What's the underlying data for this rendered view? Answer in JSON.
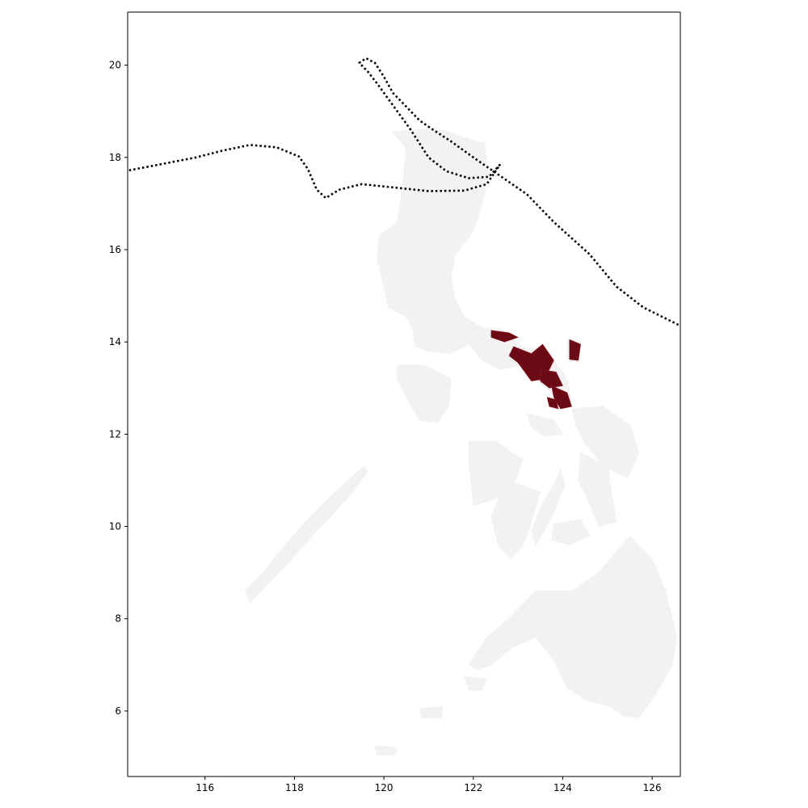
{
  "chart_data": {
    "type": "map",
    "region": "Philippines",
    "xlim": [
      114.27,
      126.63
    ],
    "ylim": [
      4.58,
      21.15
    ],
    "x_ticks": [
      116,
      118,
      120,
      122,
      124,
      126
    ],
    "y_ticks": [
      6,
      8,
      10,
      12,
      14,
      16,
      18,
      20
    ],
    "x_tick_labels": [
      "116",
      "118",
      "120",
      "122",
      "124",
      "126"
    ],
    "y_tick_labels": [
      "6",
      "8",
      "10",
      "12",
      "14",
      "16",
      "18",
      "20"
    ],
    "grid": false,
    "colors": {
      "land": "#f2f2f2",
      "highlight": "#6b0a14",
      "track": "#000000"
    },
    "track_style": "dotted",
    "storm_tracks": [
      {
        "points": [
          [
            114.3,
            17.72
          ],
          [
            115.0,
            17.85
          ],
          [
            115.8,
            18.0
          ],
          [
            116.4,
            18.15
          ],
          [
            117.0,
            18.27
          ],
          [
            117.6,
            18.22
          ],
          [
            118.1,
            18.02
          ],
          [
            118.3,
            17.75
          ],
          [
            118.5,
            17.3
          ],
          [
            118.7,
            17.12
          ],
          [
            119.0,
            17.3
          ],
          [
            119.5,
            17.42
          ],
          [
            120.2,
            17.35
          ],
          [
            121.0,
            17.27
          ],
          [
            121.8,
            17.28
          ],
          [
            122.3,
            17.42
          ],
          [
            122.6,
            17.85
          ]
        ]
      },
      {
        "points": [
          [
            122.6,
            17.85
          ],
          [
            122.35,
            17.58
          ],
          [
            121.9,
            17.55
          ],
          [
            121.4,
            17.7
          ],
          [
            121.0,
            18.0
          ],
          [
            120.6,
            18.6
          ],
          [
            120.15,
            19.2
          ],
          [
            119.85,
            19.6
          ],
          [
            119.65,
            19.85
          ],
          [
            119.45,
            20.05
          ],
          [
            119.6,
            20.15
          ],
          [
            119.8,
            20.05
          ],
          [
            120.0,
            19.75
          ],
          [
            120.2,
            19.4
          ],
          [
            120.5,
            19.1
          ],
          [
            120.8,
            18.8
          ],
          [
            121.1,
            18.6
          ],
          [
            121.5,
            18.35
          ],
          [
            122.0,
            18.0
          ],
          [
            122.6,
            17.6
          ],
          [
            123.2,
            17.2
          ],
          [
            123.8,
            16.6
          ],
          [
            124.6,
            15.9
          ],
          [
            125.2,
            15.2
          ],
          [
            125.8,
            14.75
          ],
          [
            126.63,
            14.35
          ]
        ]
      }
    ],
    "land_polygons": [
      {
        "name": "Luzon",
        "points": [
          [
            120.2,
            18.55
          ],
          [
            120.6,
            18.6
          ],
          [
            121.3,
            18.6
          ],
          [
            121.9,
            18.4
          ],
          [
            122.25,
            18.3
          ],
          [
            122.35,
            17.6
          ],
          [
            122.2,
            17.0
          ],
          [
            122.0,
            16.4
          ],
          [
            121.6,
            15.9
          ],
          [
            121.5,
            15.4
          ],
          [
            121.6,
            14.9
          ],
          [
            121.8,
            14.55
          ],
          [
            122.2,
            14.3
          ],
          [
            122.6,
            14.3
          ],
          [
            122.9,
            14.05
          ],
          [
            123.2,
            13.85
          ],
          [
            123.5,
            13.9
          ],
          [
            123.8,
            13.6
          ],
          [
            124.1,
            13.2
          ],
          [
            124.2,
            12.6
          ],
          [
            123.9,
            12.75
          ],
          [
            123.5,
            13.1
          ],
          [
            123.1,
            13.5
          ],
          [
            122.6,
            13.4
          ],
          [
            122.2,
            13.6
          ],
          [
            121.9,
            13.95
          ],
          [
            121.5,
            13.75
          ],
          [
            121.0,
            13.8
          ],
          [
            120.7,
            13.9
          ],
          [
            120.65,
            14.25
          ],
          [
            120.5,
            14.55
          ],
          [
            120.1,
            14.75
          ],
          [
            120.0,
            15.2
          ],
          [
            119.85,
            15.8
          ],
          [
            119.9,
            16.3
          ],
          [
            120.3,
            16.6
          ],
          [
            120.4,
            17.2
          ],
          [
            120.45,
            17.7
          ],
          [
            120.5,
            18.2
          ]
        ]
      },
      {
        "name": "Palawan",
        "points": [
          [
            117.0,
            8.35
          ],
          [
            117.4,
            8.75
          ],
          [
            117.9,
            9.25
          ],
          [
            118.4,
            9.8
          ],
          [
            118.9,
            10.3
          ],
          [
            119.3,
            10.75
          ],
          [
            119.65,
            11.2
          ],
          [
            119.55,
            11.3
          ],
          [
            119.2,
            11.0
          ],
          [
            118.7,
            10.55
          ],
          [
            118.2,
            10.05
          ],
          [
            117.75,
            9.55
          ],
          [
            117.3,
            9.0
          ],
          [
            116.9,
            8.6
          ]
        ]
      },
      {
        "name": "Mindoro",
        "points": [
          [
            120.3,
            13.5
          ],
          [
            120.9,
            13.5
          ],
          [
            121.5,
            13.2
          ],
          [
            121.45,
            12.6
          ],
          [
            121.2,
            12.25
          ],
          [
            120.8,
            12.3
          ],
          [
            120.5,
            12.8
          ],
          [
            120.3,
            13.2
          ]
        ]
      },
      {
        "name": "Panay",
        "points": [
          [
            121.9,
            11.85
          ],
          [
            122.5,
            11.85
          ],
          [
            123.1,
            11.45
          ],
          [
            122.9,
            10.9
          ],
          [
            122.5,
            10.6
          ],
          [
            122.0,
            10.45
          ],
          [
            121.95,
            10.9
          ],
          [
            121.9,
            11.4
          ]
        ]
      },
      {
        "name": "Negros",
        "points": [
          [
            122.9,
            10.95
          ],
          [
            123.5,
            10.75
          ],
          [
            123.3,
            10.1
          ],
          [
            123.1,
            9.55
          ],
          [
            122.85,
            9.3
          ],
          [
            122.55,
            9.6
          ],
          [
            122.4,
            10.2
          ],
          [
            122.6,
            10.7
          ]
        ]
      },
      {
        "name": "Cebu",
        "points": [
          [
            123.95,
            11.25
          ],
          [
            124.05,
            10.9
          ],
          [
            123.75,
            10.2
          ],
          [
            123.4,
            9.6
          ],
          [
            123.3,
            9.9
          ],
          [
            123.55,
            10.5
          ],
          [
            123.85,
            11.0
          ]
        ]
      },
      {
        "name": "Bohol",
        "points": [
          [
            123.8,
            10.05
          ],
          [
            124.4,
            10.15
          ],
          [
            124.6,
            9.8
          ],
          [
            124.15,
            9.6
          ],
          [
            123.75,
            9.7
          ]
        ]
      },
      {
        "name": "Samar",
        "points": [
          [
            124.2,
            12.55
          ],
          [
            124.9,
            12.6
          ],
          [
            125.5,
            12.2
          ],
          [
            125.7,
            11.6
          ],
          [
            125.45,
            11.05
          ],
          [
            124.9,
            11.3
          ],
          [
            124.5,
            11.8
          ],
          [
            124.3,
            12.2
          ]
        ]
      },
      {
        "name": "Leyte",
        "points": [
          [
            124.4,
            11.6
          ],
          [
            125.0,
            11.3
          ],
          [
            125.1,
            10.7
          ],
          [
            125.2,
            10.1
          ],
          [
            124.8,
            10.0
          ],
          [
            124.6,
            10.5
          ],
          [
            124.35,
            11.0
          ]
        ]
      },
      {
        "name": "Masbate",
        "points": [
          [
            123.2,
            12.45
          ],
          [
            123.8,
            12.3
          ],
          [
            124.0,
            12.0
          ],
          [
            123.6,
            11.95
          ],
          [
            123.3,
            12.15
          ]
        ]
      },
      {
        "name": "Mindanao",
        "points": [
          [
            121.9,
            7.0
          ],
          [
            122.3,
            7.6
          ],
          [
            122.8,
            8.0
          ],
          [
            123.4,
            8.6
          ],
          [
            124.2,
            8.6
          ],
          [
            124.8,
            9.0
          ],
          [
            125.5,
            9.8
          ],
          [
            126.0,
            9.3
          ],
          [
            126.3,
            8.6
          ],
          [
            126.55,
            7.6
          ],
          [
            126.45,
            7.0
          ],
          [
            126.1,
            6.4
          ],
          [
            125.7,
            5.85
          ],
          [
            125.35,
            5.9
          ],
          [
            125.05,
            6.1
          ],
          [
            124.6,
            6.2
          ],
          [
            124.1,
            6.5
          ],
          [
            123.8,
            7.1
          ],
          [
            123.4,
            7.6
          ],
          [
            122.9,
            7.4
          ],
          [
            122.4,
            7.0
          ],
          [
            122.1,
            6.9
          ]
        ]
      },
      {
        "name": "Basilan",
        "points": [
          [
            121.8,
            6.75
          ],
          [
            122.3,
            6.7
          ],
          [
            122.2,
            6.45
          ],
          [
            121.9,
            6.45
          ]
        ]
      },
      {
        "name": "Jolo",
        "points": [
          [
            120.8,
            6.05
          ],
          [
            121.3,
            6.1
          ],
          [
            121.3,
            5.85
          ],
          [
            120.85,
            5.85
          ]
        ]
      },
      {
        "name": "Tawi-Tawi",
        "points": [
          [
            119.8,
            5.25
          ],
          [
            120.3,
            5.2
          ],
          [
            120.25,
            5.05
          ],
          [
            119.85,
            5.05
          ]
        ]
      },
      {
        "name": "Catanduanes",
        "points": [
          [
            124.1,
            14.05
          ],
          [
            124.4,
            14.0
          ],
          [
            124.35,
            13.55
          ],
          [
            124.1,
            13.6
          ]
        ]
      }
    ],
    "highlight_regions": [
      {
        "name": "Camarines Norte",
        "points": [
          [
            122.4,
            14.25
          ],
          [
            122.8,
            14.2
          ],
          [
            123.0,
            14.1
          ],
          [
            122.7,
            14.0
          ],
          [
            122.4,
            14.1
          ]
        ]
      },
      {
        "name": "Camarines Sur",
        "points": [
          [
            122.9,
            13.9
          ],
          [
            123.3,
            13.75
          ],
          [
            123.55,
            13.95
          ],
          [
            123.8,
            13.6
          ],
          [
            123.6,
            13.2
          ],
          [
            123.3,
            13.15
          ],
          [
            123.0,
            13.55
          ],
          [
            122.8,
            13.7
          ]
        ]
      },
      {
        "name": "Albay",
        "points": [
          [
            123.5,
            13.4
          ],
          [
            123.85,
            13.35
          ],
          [
            124.0,
            13.05
          ],
          [
            123.7,
            13.0
          ],
          [
            123.5,
            13.15
          ]
        ]
      },
      {
        "name": "Sorsogon",
        "points": [
          [
            123.75,
            13.05
          ],
          [
            124.1,
            12.9
          ],
          [
            124.2,
            12.6
          ],
          [
            123.95,
            12.55
          ],
          [
            123.8,
            12.8
          ]
        ]
      },
      {
        "name": "Catanduanes",
        "points": [
          [
            124.15,
            14.05
          ],
          [
            124.4,
            13.95
          ],
          [
            124.35,
            13.6
          ],
          [
            124.15,
            13.62
          ]
        ]
      },
      {
        "name": "Masbate north tip",
        "points": [
          [
            123.65,
            12.8
          ],
          [
            123.85,
            12.75
          ],
          [
            123.9,
            12.55
          ],
          [
            123.7,
            12.6
          ]
        ]
      }
    ]
  }
}
